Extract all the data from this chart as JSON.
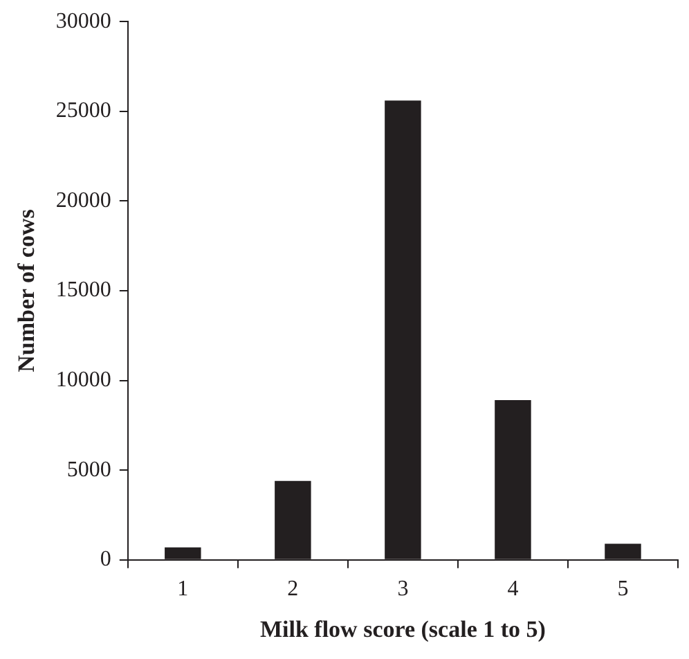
{
  "chart_data": {
    "type": "bar",
    "xlabel": "Milk flow score (scale 1 to 5)",
    "ylabel": "Number of cows",
    "categories": [
      "1",
      "2",
      "3",
      "4",
      "5"
    ],
    "values": [
      700,
      4400,
      25600,
      8900,
      900
    ],
    "color": "#231f20",
    "ylim": [
      0,
      30000
    ],
    "yticks": [
      0,
      5000,
      10000,
      15000,
      20000,
      25000,
      30000
    ],
    "grid": false,
    "legend": false
  }
}
